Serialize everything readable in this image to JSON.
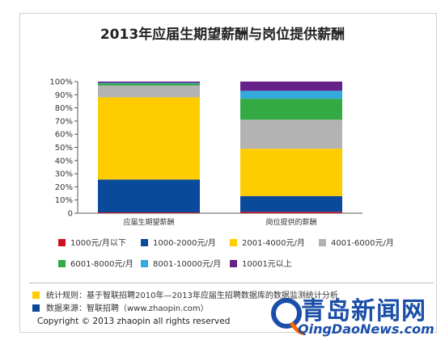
{
  "chart_data": {
    "type": "bar",
    "stacked": true,
    "title": "2013年应届生期望薪酬与岗位提供薪酬",
    "categories": [
      "应届生期望薪酬",
      "岗位提供的薪酬"
    ],
    "y_ticks": [
      "0",
      "10%",
      "20%",
      "30%",
      "40%",
      "50%",
      "60%",
      "70%",
      "80%",
      "90%",
      "100%"
    ],
    "ylim": [
      0,
      100
    ],
    "legend_position": "bottom",
    "series": [
      {
        "name": "1000元/月以下",
        "color": "#cc1122",
        "values": [
          0.6,
          1.0
        ]
      },
      {
        "name": "1000-2000元/月",
        "color": "#0a4a9a",
        "values": [
          25.0,
          12.0
        ]
      },
      {
        "name": "2001-4000元/月",
        "color": "#ffcc00",
        "values": [
          62.4,
          36.0
        ]
      },
      {
        "name": "4001-6000元/月",
        "color": "#b3b3b3",
        "values": [
          9.0,
          22.0
        ]
      },
      {
        "name": "6001-8000元/月",
        "color": "#33aa44",
        "values": [
          1.5,
          16.0
        ]
      },
      {
        "name": "8001-10000元/月",
        "color": "#33aadd",
        "values": [
          0.5,
          6.0
        ]
      },
      {
        "name": "10001元以上",
        "color": "#662288",
        "values": [
          1.0,
          7.0
        ]
      }
    ]
  },
  "notes": {
    "rule": "统计规则：基于智联招聘2010年—2013年应届生招聘数据库的数据监测统计分析",
    "rule_color": "#ffcc00",
    "source": "数据来源：智联招聘（www.zhaopin.com）",
    "source_color": "#0a4a9a"
  },
  "copyright": "Copyright © 2013 zhaopin all rights reserved",
  "watermark": {
    "brand": "智联招聘",
    "site_name": "青岛新闻网",
    "site_url": "QingDaoNews.com",
    "colors": {
      "primary": "#1a4ea8",
      "accent": "#ff6600"
    }
  }
}
